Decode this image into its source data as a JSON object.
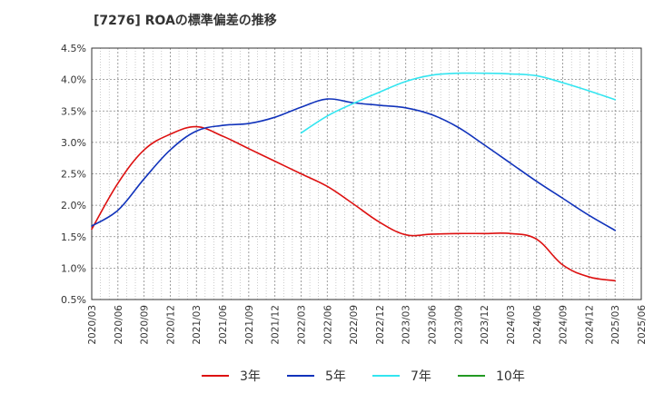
{
  "chart_data": {
    "type": "line",
    "title": "[7276]  ROAの標準偏差の推移",
    "xlabel": "",
    "ylabel": "",
    "ylim": [
      0.5,
      4.5
    ],
    "y_ticks": [
      0.5,
      1.0,
      1.5,
      2.0,
      2.5,
      3.0,
      3.5,
      4.0,
      4.5
    ],
    "y_tick_labels": [
      "0.5%",
      "1.0%",
      "1.5%",
      "2.0%",
      "2.5%",
      "3.0%",
      "3.5%",
      "4.0%",
      "4.5%"
    ],
    "x_tick_labels": [
      "2020/03",
      "2020/06",
      "2020/09",
      "2020/12",
      "2021/03",
      "2021/06",
      "2021/09",
      "2021/12",
      "2022/03",
      "2022/06",
      "2022/09",
      "2022/12",
      "2023/03",
      "2023/06",
      "2023/09",
      "2023/12",
      "2024/03",
      "2024/06",
      "2024/09",
      "2024/12",
      "2025/03",
      "2025/06"
    ],
    "grid": true,
    "legend_position": "bottom",
    "series": [
      {
        "name": "3年",
        "color": "#dd1111",
        "x": [
          "2020/03",
          "2020/06",
          "2020/09",
          "2020/12",
          "2021/03",
          "2021/06",
          "2021/09",
          "2021/12",
          "2022/03",
          "2022/06",
          "2022/09",
          "2022/12",
          "2023/03",
          "2023/06",
          "2023/09",
          "2023/12",
          "2024/03",
          "2024/06",
          "2024/09",
          "2024/12",
          "2025/03"
        ],
        "values": [
          1.62,
          2.35,
          2.88,
          3.13,
          3.25,
          3.1,
          2.9,
          2.7,
          2.5,
          2.3,
          2.02,
          1.73,
          1.53,
          1.54,
          1.55,
          1.55,
          1.55,
          1.46,
          1.05,
          0.86,
          0.8
        ]
      },
      {
        "name": "5年",
        "color": "#1133bb",
        "x": [
          "2020/03",
          "2020/06",
          "2020/09",
          "2020/12",
          "2021/03",
          "2021/06",
          "2021/09",
          "2021/12",
          "2022/03",
          "2022/06",
          "2022/09",
          "2022/12",
          "2023/03",
          "2023/06",
          "2023/09",
          "2023/12",
          "2024/03",
          "2024/06",
          "2024/09",
          "2024/12",
          "2025/03"
        ],
        "values": [
          1.67,
          1.92,
          2.42,
          2.88,
          3.18,
          3.27,
          3.3,
          3.4,
          3.56,
          3.69,
          3.63,
          3.59,
          3.55,
          3.44,
          3.24,
          2.96,
          2.67,
          2.38,
          2.11,
          1.84,
          1.6
        ]
      },
      {
        "name": "7年",
        "color": "#33e5f0",
        "x": [
          "2022/03",
          "2022/06",
          "2022/09",
          "2022/12",
          "2023/03",
          "2023/06",
          "2023/09",
          "2023/12",
          "2024/03",
          "2024/06",
          "2024/09",
          "2024/12",
          "2025/03"
        ],
        "values": [
          3.15,
          3.42,
          3.62,
          3.8,
          3.97,
          4.07,
          4.1,
          4.1,
          4.09,
          4.06,
          3.95,
          3.82,
          3.68
        ]
      },
      {
        "name": "10年",
        "color": "#229922",
        "x": [],
        "values": []
      }
    ]
  }
}
